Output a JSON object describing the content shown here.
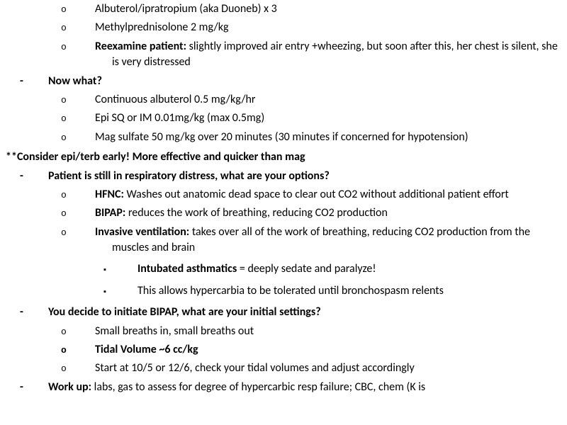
{
  "text_color": "#000000",
  "background_color": "#ffffff",
  "font_family": "Calibri",
  "font_size_pt": 12,
  "lines": {
    "i1": "Albuterol/ipratropium (aka Duoneb) x 3",
    "i2": "Methylprednisolone 2 mg/kg",
    "i3a": "Reexamine patient:",
    "i3b": " slightly improved air entry +wheezing, but soon after this, her chest is silent, she is very distressed",
    "s1": "Now what?",
    "i4": "Continuous albuterol 0.5 mg/kg/hr",
    "i5": "Epi SQ or IM 0.01mg/kg (max 0.5mg)",
    "i6": "Mag sulfate 50 mg/kg over 20 minutes (30 minutes if concerned for hypotension)",
    "note": "**Consider epi/terb early! More effective and quicker than mag",
    "s2": "Patient is still in respiratory distress, what are your options?",
    "i7a": "HFNC:",
    "i7b": " Washes out anatomic dead space to clear out CO2 without additional patient effort",
    "i8a": "BIPAP:",
    "i8b": " reduces the work of breathing, reducing CO2 production",
    "i9a": "Invasive ventilation:",
    "i9b": " takes over all of the work of breathing, reducing CO2 production from the muscles and brain",
    "i10a": "Intubated asthmatics",
    "i10b": " = deeply sedate and paralyze!",
    "i11": "This allows hypercarbia to be tolerated until bronchospasm relents",
    "s3": "You decide to initiate BIPAP, what are your initial settings?",
    "i12": "Small breaths in, small breaths out",
    "i13": "Tidal Volume ~6 cc/kg",
    "i14": "Start at 10/5 or 12/6, check your tidal volumes and adjust accordingly",
    "s4a": "Work up:",
    "s4b": " labs, gas to assess for degree of hypercarbic resp failure; CBC, chem (K is"
  }
}
